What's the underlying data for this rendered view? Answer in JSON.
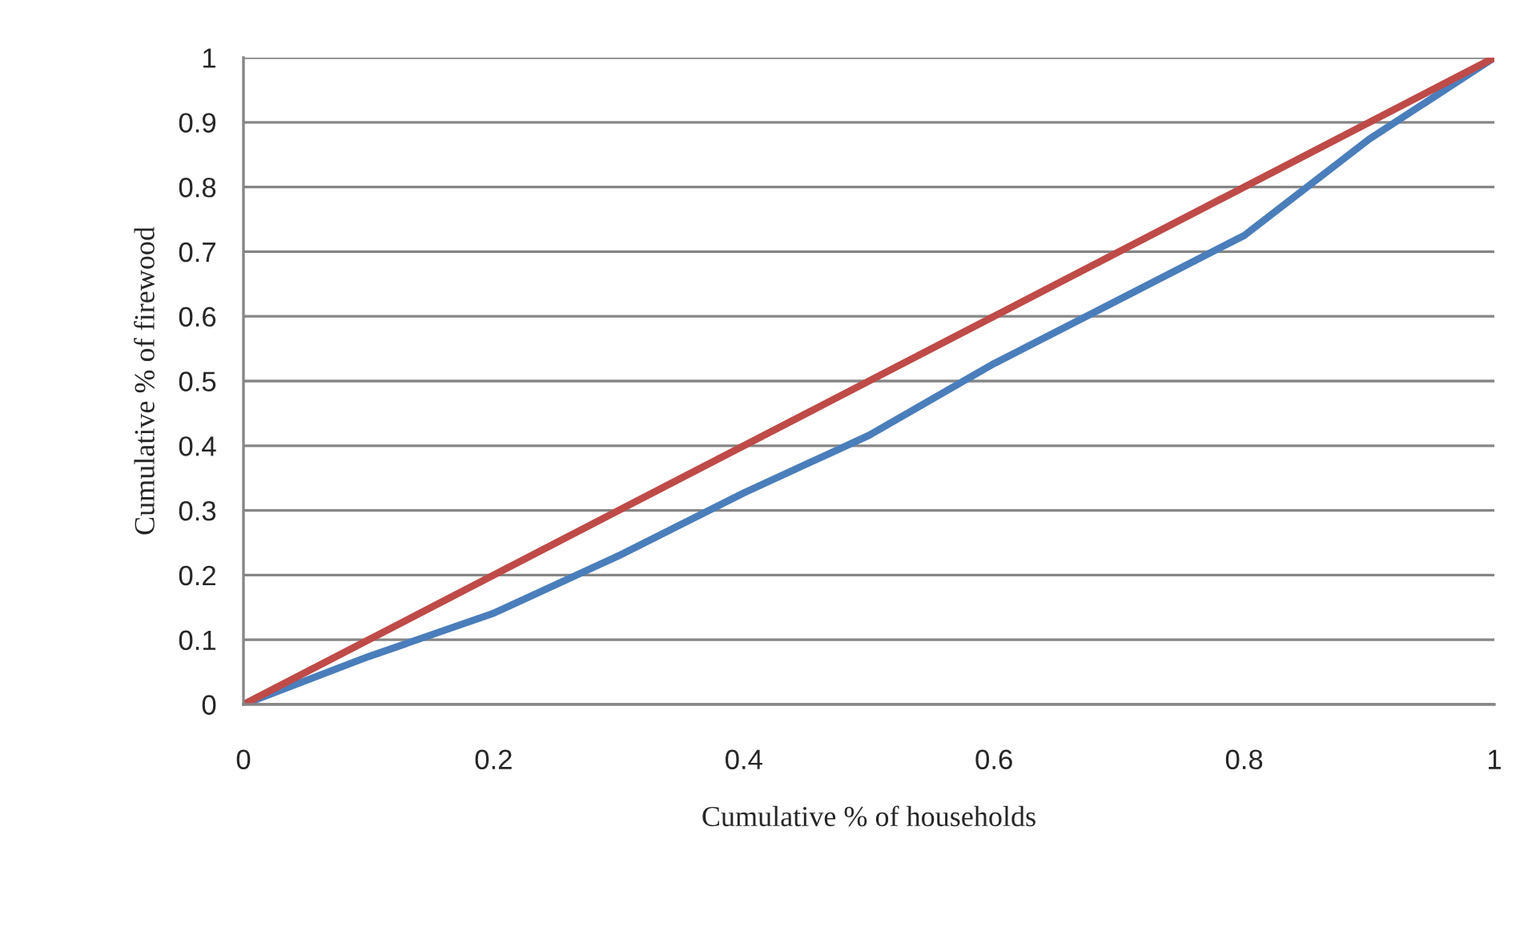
{
  "chart_data": {
    "type": "line",
    "xlabel": "Cumulative % of households",
    "ylabel": "Cumulative % of firewood",
    "series": [
      {
        "color": "#4a7ebb",
        "x": [
          0,
          0.1,
          0.2,
          0.3,
          0.4,
          0.5,
          0.6,
          0.7,
          0.8,
          0.9,
          1
        ],
        "values": [
          0,
          0.074,
          0.141,
          0.23,
          0.327,
          0.416,
          0.527,
          0.626,
          0.725,
          0.874,
          1
        ]
      },
      {
        "color": "#be4b48",
        "x": [
          0,
          1
        ],
        "values": [
          0,
          1
        ]
      }
    ],
    "xlim": [
      0,
      1
    ],
    "ylim": [
      0,
      1
    ],
    "xticks": [
      0,
      0.2,
      0.4,
      0.6,
      0.8,
      1
    ],
    "yticks": [
      0,
      0.1,
      0.2,
      0.3,
      0.4,
      0.5,
      0.6,
      0.7,
      0.8,
      0.9,
      1
    ],
    "grid": "y",
    "marker": "none",
    "line_style": "solid"
  }
}
